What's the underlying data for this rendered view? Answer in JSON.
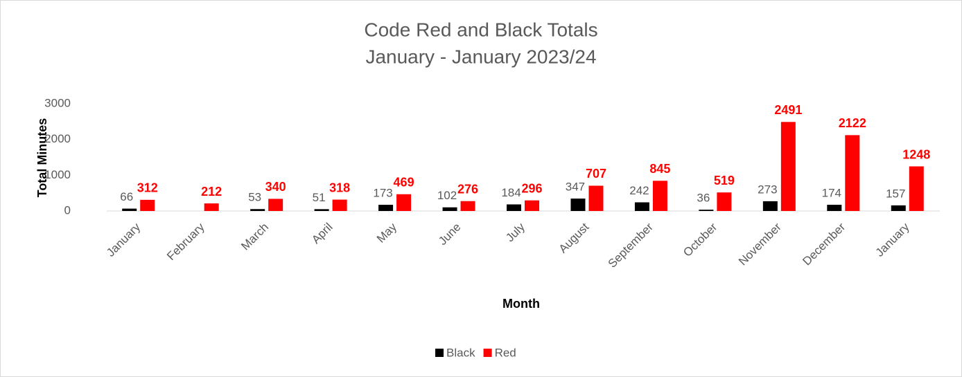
{
  "chart_data": {
    "type": "bar",
    "title": "Code Red and Black Totals",
    "subtitle": "January - January 2023/24",
    "x_label": "Month",
    "y_label": "Total Minutes",
    "categories": [
      "January",
      "February",
      "March",
      "April",
      "May",
      "June",
      "July",
      "August",
      "September",
      "October",
      "November",
      "December",
      "January"
    ],
    "series": [
      {
        "name": "Black",
        "color": "#000000",
        "values": [
          66,
          null,
          53,
          51,
          173,
          102,
          184,
          347,
          242,
          36,
          273,
          174,
          157
        ]
      },
      {
        "name": "Red",
        "color": "#ff0000",
        "values": [
          312,
          212,
          340,
          318,
          469,
          276,
          296,
          707,
          845,
          519,
          2491,
          2122,
          1248
        ]
      }
    ],
    "ylim": [
      0,
      3000
    ],
    "yticks": [
      0,
      1000,
      2000,
      3000
    ],
    "grid": false,
    "legend": "bottom"
  }
}
